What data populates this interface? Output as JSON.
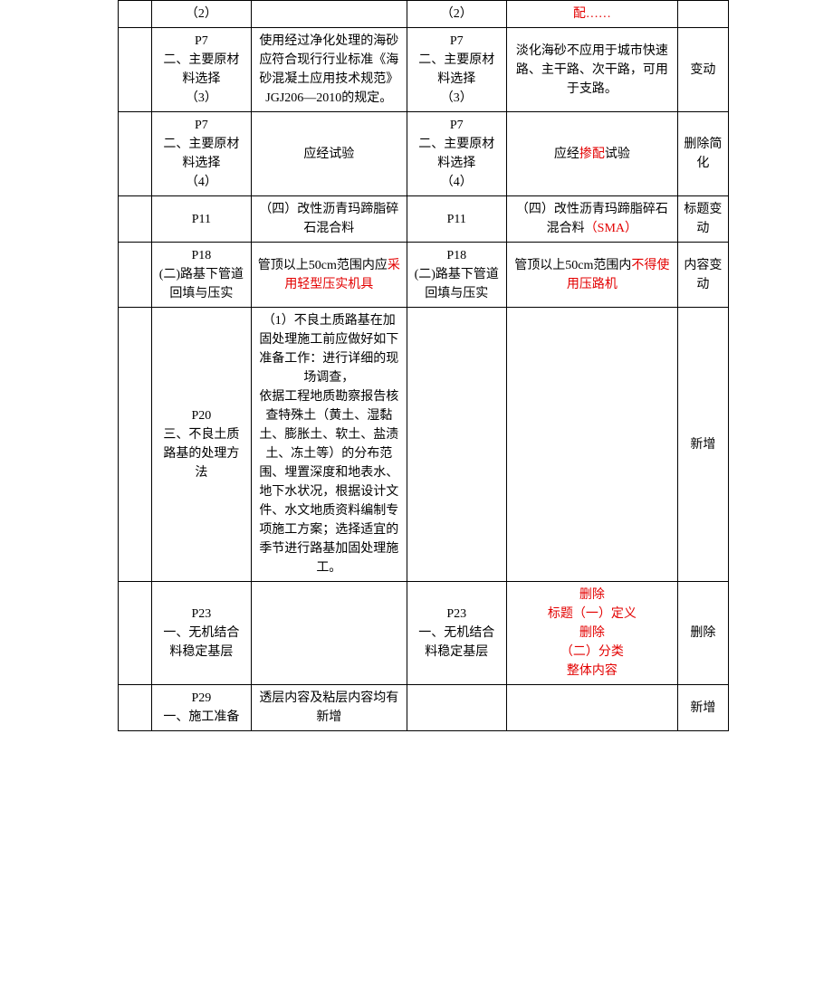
{
  "rows": [
    {
      "c0": "",
      "c1": "（2）",
      "c2": "",
      "c3": "（2）",
      "c4_pre": "",
      "c4_red": "配……",
      "c4_post": "",
      "c5": ""
    },
    {
      "c0": "",
      "c1": "P7\n二、主要原材料选择\n（3）",
      "c2": "使用经过净化处理的海砂应符合现行行业标准《海砂混凝土应用技术规范》JGJ206—2010的规定。",
      "c3": "P7\n二、主要原材料选择\n（3）",
      "c4_pre": "淡化海砂不应用于城市快速路、主干路、次干路，可用于支路。",
      "c4_red": "",
      "c4_post": "",
      "c5": "变动"
    },
    {
      "c0": "",
      "c1": "P7\n二、主要原材料选择\n（4）",
      "c2": "应经试验",
      "c3": "P7\n二、主要原材料选择\n（4）",
      "c4_pre": "应经",
      "c4_red": "掺配",
      "c4_post": "试验",
      "c5": "删除简化"
    },
    {
      "c0": "",
      "c1": "P11",
      "c2": "（四）改性沥青玛蹄脂碎石混合料",
      "c3": "P11",
      "c4_pre": "（四）改性沥青玛蹄脂碎石混合料",
      "c4_red": "（SMA）",
      "c4_post": "",
      "c5": "标题变动"
    },
    {
      "c0": "",
      "c1": "P18\n(二)路基下管道回填与压实",
      "c2_pre": "管顶以上50cm范围内应",
      "c2_red": "采用轻型压实机具",
      "c2_post": "",
      "c3": "P18\n(二)路基下管道回填与压实",
      "c4_pre": "管顶以上50cm范围内",
      "c4_red": "不得使用压路机",
      "c4_post": "",
      "c5": "内容变动"
    },
    {
      "c0": "",
      "c1": "P20\n三、不良土质路基的处理方法",
      "c2": "（1）不良土质路基在加固处理施工前应做好如下准备工作：进行详细的现场调查，\n依据工程地质勘察报告核查特殊土（黄土、湿黏土、膨胀土、软土、盐渍土、冻土等）的分布范围、埋置深度和地表水、地下水状况，根据设计文件、水文地质资料编制专项施工方案；选择适宜的季节进行路基加固处理施工。",
      "c3": "",
      "c4_pre": "",
      "c4_red": "",
      "c4_post": "",
      "c5": "新增"
    },
    {
      "c0": "",
      "c1": "P23\n一、无机结合料稳定基层",
      "c2": "",
      "c3": "P23\n一、无机结合料稳定基层",
      "c4_pre": "",
      "c4_red": "删除\n标题（一）定义\n删除\n（二）分类\n整体内容",
      "c4_post": "",
      "c5": "删除"
    },
    {
      "c0": "",
      "c1": "P29\n一、施工准备",
      "c2": "透层内容及粘层内容均有新增",
      "c3": "",
      "c4_pre": "",
      "c4_red": "",
      "c4_post": "",
      "c5": "新增"
    }
  ]
}
